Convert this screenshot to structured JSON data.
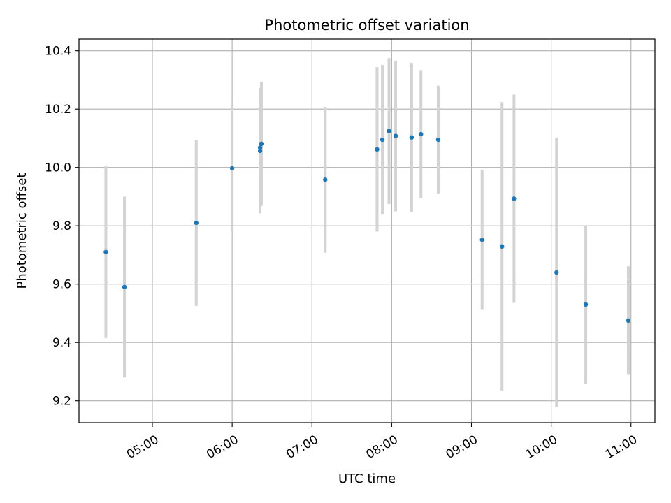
{
  "chart_data": {
    "type": "scatter",
    "title": "Photometric offset variation",
    "xlabel": "UTC time",
    "ylabel": "Photometric offset",
    "x_tick_labels": [
      "05:00",
      "06:00",
      "07:00",
      "08:00",
      "09:00",
      "10:00",
      "11:00"
    ],
    "y_tick_labels": [
      "9.2",
      "9.4",
      "9.6",
      "9.8",
      "10.0",
      "10.2",
      "10.4"
    ],
    "x_ticks_hours": [
      5,
      6,
      7,
      8,
      9,
      10,
      11
    ],
    "y_ticks": [
      9.2,
      9.4,
      9.6,
      9.8,
      10.0,
      10.2,
      10.4
    ],
    "xlim_hours": [
      4.08,
      11.3
    ],
    "ylim": [
      9.125,
      10.44
    ],
    "grid": true,
    "point_color": "#1f77b4",
    "errorbar_color": "#d3d3d3",
    "points": [
      {
        "time": "04:25",
        "y": 9.71,
        "err": 0.295
      },
      {
        "time": "04:39",
        "y": 9.59,
        "err": 0.31
      },
      {
        "time": "05:33",
        "y": 9.81,
        "err": 0.285
      },
      {
        "time": "06:00",
        "y": 9.997,
        "err": 0.217
      },
      {
        "time": "06:21",
        "y": 10.057,
        "err": 0.215
      },
      {
        "time": "06:21",
        "y": 10.068,
        "err": 0.2
      },
      {
        "time": "06:22",
        "y": 10.081,
        "err": 0.213
      },
      {
        "time": "07:10",
        "y": 9.958,
        "err": 0.25
      },
      {
        "time": "07:49",
        "y": 10.062,
        "err": 0.282
      },
      {
        "time": "07:53",
        "y": 10.095,
        "err": 0.256
      },
      {
        "time": "07:58",
        "y": 10.125,
        "err": 0.25
      },
      {
        "time": "08:03",
        "y": 10.108,
        "err": 0.258
      },
      {
        "time": "08:15",
        "y": 10.103,
        "err": 0.256
      },
      {
        "time": "08:22",
        "y": 10.114,
        "err": 0.22
      },
      {
        "time": "08:35",
        "y": 10.095,
        "err": 0.185
      },
      {
        "time": "09:08",
        "y": 9.752,
        "err": 0.24
      },
      {
        "time": "09:23",
        "y": 9.729,
        "err": 0.495
      },
      {
        "time": "09:32",
        "y": 9.893,
        "err": 0.357
      },
      {
        "time": "10:04",
        "y": 9.64,
        "err": 0.462
      },
      {
        "time": "10:26",
        "y": 9.53,
        "err": 0.272
      },
      {
        "time": "10:58",
        "y": 9.475,
        "err": 0.186
      }
    ]
  }
}
